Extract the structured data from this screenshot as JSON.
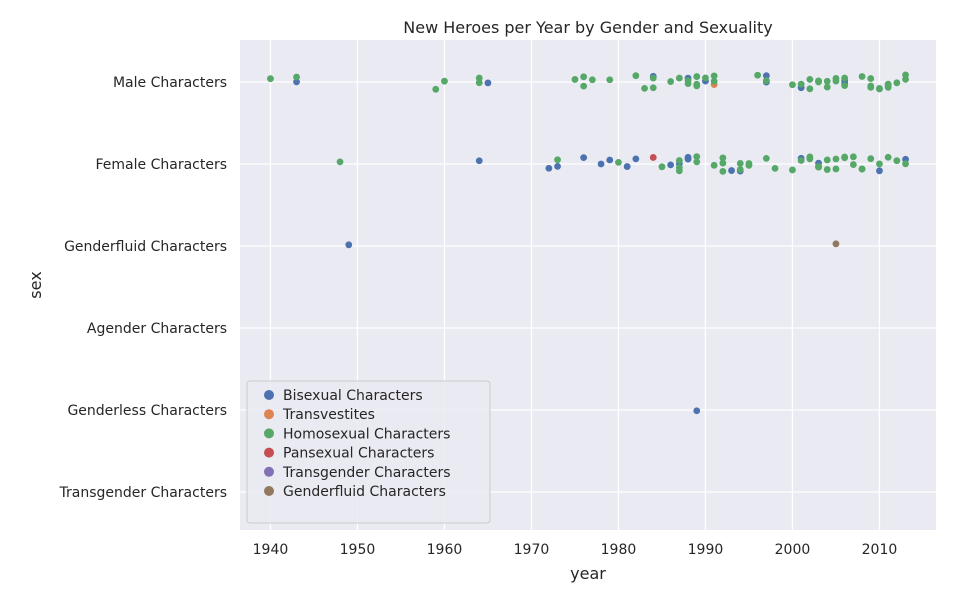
{
  "chart_data": {
    "type": "scatter",
    "title": "New Heroes per Year by Gender and Sexuality",
    "xlabel": "year",
    "ylabel": "sex",
    "xlim": [
      1936.5,
      2016.5
    ],
    "x_ticks": [
      1940,
      1950,
      1960,
      1970,
      1980,
      1990,
      2000,
      2010
    ],
    "categories": [
      "Male Characters",
      "Female Characters",
      "Genderfluid Characters",
      "Agender Characters",
      "Genderless Characters",
      "Transgender Characters"
    ],
    "grid": true,
    "legend_position": "lower-left",
    "series": [
      {
        "name": "Bisexual Characters",
        "color": "#4c72b0",
        "points": [
          [
            "Male Characters",
            1943
          ],
          [
            "Male Characters",
            1965
          ],
          [
            "Male Characters",
            1984
          ],
          [
            "Male Characters",
            1988
          ],
          [
            "Male Characters",
            1990
          ],
          [
            "Male Characters",
            1997
          ],
          [
            "Male Characters",
            1997
          ],
          [
            "Male Characters",
            2001
          ],
          [
            "Male Characters",
            2006
          ],
          [
            "Male Characters",
            2006
          ],
          [
            "Female Characters",
            1964
          ],
          [
            "Female Characters",
            1972
          ],
          [
            "Female Characters",
            1973
          ],
          [
            "Female Characters",
            1976
          ],
          [
            "Female Characters",
            1978
          ],
          [
            "Female Characters",
            1979
          ],
          [
            "Female Characters",
            1981
          ],
          [
            "Female Characters",
            1982
          ],
          [
            "Female Characters",
            1986
          ],
          [
            "Female Characters",
            1987
          ],
          [
            "Female Characters",
            1988
          ],
          [
            "Female Characters",
            1988
          ],
          [
            "Female Characters",
            1993
          ],
          [
            "Female Characters",
            1994
          ],
          [
            "Female Characters",
            2001
          ],
          [
            "Female Characters",
            2003
          ],
          [
            "Female Characters",
            2010
          ],
          [
            "Female Characters",
            2013
          ],
          [
            "Genderfluid Characters",
            1949
          ],
          [
            "Genderless Characters",
            1989
          ]
        ]
      },
      {
        "name": "Transvestites",
        "color": "#dd8452",
        "points": [
          [
            "Male Characters",
            1991
          ]
        ]
      },
      {
        "name": "Homosexual Characters",
        "color": "#55a868",
        "points": [
          [
            "Male Characters",
            1940
          ],
          [
            "Male Characters",
            1943
          ],
          [
            "Male Characters",
            1959
          ],
          [
            "Male Characters",
            1960
          ],
          [
            "Male Characters",
            1964
          ],
          [
            "Male Characters",
            1964
          ],
          [
            "Male Characters",
            1975
          ],
          [
            "Male Characters",
            1976
          ],
          [
            "Male Characters",
            1976
          ],
          [
            "Male Characters",
            1977
          ],
          [
            "Male Characters",
            1979
          ],
          [
            "Male Characters",
            1982
          ],
          [
            "Male Characters",
            1983
          ],
          [
            "Male Characters",
            1984
          ],
          [
            "Male Characters",
            1984
          ],
          [
            "Male Characters",
            1986
          ],
          [
            "Male Characters",
            1987
          ],
          [
            "Male Characters",
            1988
          ],
          [
            "Male Characters",
            1988
          ],
          [
            "Male Characters",
            1989
          ],
          [
            "Male Characters",
            1989
          ],
          [
            "Male Characters",
            1989
          ],
          [
            "Male Characters",
            1990
          ],
          [
            "Male Characters",
            1991
          ],
          [
            "Male Characters",
            1991
          ],
          [
            "Male Characters",
            1996
          ],
          [
            "Male Characters",
            1997
          ],
          [
            "Male Characters",
            2000
          ],
          [
            "Male Characters",
            2001
          ],
          [
            "Male Characters",
            2002
          ],
          [
            "Male Characters",
            2002
          ],
          [
            "Male Characters",
            2003
          ],
          [
            "Male Characters",
            2003
          ],
          [
            "Male Characters",
            2003
          ],
          [
            "Male Characters",
            2004
          ],
          [
            "Male Characters",
            2004
          ],
          [
            "Male Characters",
            2005
          ],
          [
            "Male Characters",
            2005
          ],
          [
            "Male Characters",
            2006
          ],
          [
            "Male Characters",
            2006
          ],
          [
            "Male Characters",
            2008
          ],
          [
            "Male Characters",
            2009
          ],
          [
            "Male Characters",
            2009
          ],
          [
            "Male Characters",
            2009
          ],
          [
            "Male Characters",
            2010
          ],
          [
            "Male Characters",
            2010
          ],
          [
            "Male Characters",
            2011
          ],
          [
            "Male Characters",
            2011
          ],
          [
            "Male Characters",
            2011
          ],
          [
            "Male Characters",
            2012
          ],
          [
            "Male Characters",
            2013
          ],
          [
            "Male Characters",
            2013
          ],
          [
            "Female Characters",
            1948
          ],
          [
            "Female Characters",
            1973
          ],
          [
            "Female Characters",
            1980
          ],
          [
            "Female Characters",
            1985
          ],
          [
            "Female Characters",
            1987
          ],
          [
            "Female Characters",
            1987
          ],
          [
            "Female Characters",
            1987
          ],
          [
            "Female Characters",
            1989
          ],
          [
            "Female Characters",
            1989
          ],
          [
            "Female Characters",
            1991
          ],
          [
            "Female Characters",
            1992
          ],
          [
            "Female Characters",
            1992
          ],
          [
            "Female Characters",
            1992
          ],
          [
            "Female Characters",
            1994
          ],
          [
            "Female Characters",
            1994
          ],
          [
            "Female Characters",
            1995
          ],
          [
            "Female Characters",
            1995
          ],
          [
            "Female Characters",
            1997
          ],
          [
            "Female Characters",
            1998
          ],
          [
            "Female Characters",
            2000
          ],
          [
            "Female Characters",
            2001
          ],
          [
            "Female Characters",
            2002
          ],
          [
            "Female Characters",
            2002
          ],
          [
            "Female Characters",
            2003
          ],
          [
            "Female Characters",
            2003
          ],
          [
            "Female Characters",
            2003
          ],
          [
            "Female Characters",
            2004
          ],
          [
            "Female Characters",
            2004
          ],
          [
            "Female Characters",
            2005
          ],
          [
            "Female Characters",
            2005
          ],
          [
            "Female Characters",
            2006
          ],
          [
            "Female Characters",
            2006
          ],
          [
            "Female Characters",
            2007
          ],
          [
            "Female Characters",
            2007
          ],
          [
            "Female Characters",
            2008
          ],
          [
            "Female Characters",
            2008
          ],
          [
            "Female Characters",
            2009
          ],
          [
            "Female Characters",
            2010
          ],
          [
            "Female Characters",
            2011
          ],
          [
            "Female Characters",
            2012
          ],
          [
            "Female Characters",
            2013
          ]
        ]
      },
      {
        "name": "Pansexual Characters",
        "color": "#c44e52",
        "points": [
          [
            "Female Characters",
            1984
          ]
        ]
      },
      {
        "name": "Transgender Characters",
        "color": "#8172b3",
        "points": []
      },
      {
        "name": "Genderfluid Characters",
        "color": "#937860",
        "points": [
          [
            "Genderfluid Characters",
            2005
          ]
        ]
      }
    ]
  }
}
